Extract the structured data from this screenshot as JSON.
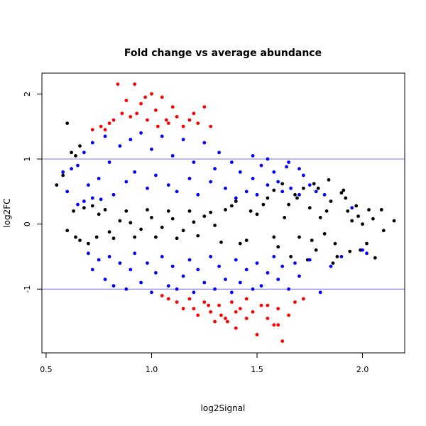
{
  "chart_data": {
    "type": "scatter",
    "title": "Fold change vs average abundance",
    "xlabel": "log2Signal",
    "ylabel": "log2FC",
    "xlim": [
      0.48,
      2.2
    ],
    "ylim": [
      -1.98,
      2.32
    ],
    "xticks": [
      "0.5",
      "1.0",
      "1.5",
      "2.0"
    ],
    "yticks": [
      "-1",
      "0",
      "1",
      "2"
    ],
    "reference_lines": [
      {
        "axis": "y",
        "value": 1,
        "color": "#7777ff"
      },
      {
        "axis": "y",
        "value": -1,
        "color": "#7777ff"
      }
    ],
    "colors": {
      "background_points": "#000000",
      "moderate_change": "#0000ff",
      "high_change": "#ff0000",
      "reference_line": "#7777ff"
    },
    "point_groups": [
      {
        "color": "#000000",
        "points": [
          [
            0.55,
            0.6
          ],
          [
            0.58,
            0.75
          ],
          [
            0.6,
            1.55
          ],
          [
            0.62,
            1.1
          ],
          [
            0.63,
            0.2
          ],
          [
            0.6,
            -0.1
          ],
          [
            0.64,
            -0.2
          ],
          [
            0.66,
            -0.25
          ],
          [
            0.7,
            -0.3
          ],
          [
            0.72,
            0.28
          ],
          [
            0.75,
            0.15
          ],
          [
            0.8,
            -0.12
          ],
          [
            0.85,
            0.05
          ],
          [
            0.9,
            0.02
          ],
          [
            0.95,
            -0.08
          ],
          [
            1.0,
            0.1
          ],
          [
            1.05,
            -0.05
          ],
          [
            1.1,
            0.08
          ],
          [
            1.15,
            -0.1
          ],
          [
            1.2,
            0.03
          ],
          [
            1.25,
            0.12
          ],
          [
            1.3,
            -0.02
          ],
          [
            1.35,
            0.22
          ],
          [
            1.4,
            0.35
          ],
          [
            1.45,
            -0.25
          ],
          [
            1.5,
            0.15
          ],
          [
            1.55,
            0.4
          ],
          [
            1.6,
            -0.35
          ],
          [
            1.65,
            0.3
          ],
          [
            1.7,
            -0.2
          ],
          [
            1.72,
            0.55
          ],
          [
            1.75,
            0.25
          ],
          [
            1.78,
            -0.4
          ],
          [
            1.8,
            0.1
          ],
          [
            1.82,
            -0.15
          ],
          [
            1.85,
            0.35
          ],
          [
            1.88,
            -0.5
          ],
          [
            1.9,
            0.48
          ],
          [
            1.93,
            0.2
          ],
          [
            1.95,
            0.05
          ],
          [
            1.98,
            0.12
          ],
          [
            2.0,
            0.0
          ],
          [
            2.02,
            -0.3
          ],
          [
            2.05,
            0.08
          ],
          [
            2.1,
            -0.1
          ],
          [
            2.15,
            0.05
          ],
          [
            1.94,
            -0.42
          ],
          [
            2.06,
            -0.52
          ],
          [
            2.03,
            0.22
          ],
          [
            1.97,
            0.28
          ],
          [
            1.92,
            0.4
          ],
          [
            1.87,
            -0.3
          ],
          [
            1.83,
            0.2
          ],
          [
            1.79,
            0.55
          ],
          [
            1.76,
            -0.25
          ],
          [
            1.69,
            0.4
          ],
          [
            1.66,
            -0.5
          ],
          [
            1.63,
            0.1
          ],
          [
            1.58,
            -0.2
          ],
          [
            1.53,
            0.3
          ],
          [
            1.47,
            0.2
          ],
          [
            1.42,
            -0.3
          ],
          [
            1.38,
            0.28
          ],
          [
            1.33,
            -0.28
          ],
          [
            1.28,
            0.18
          ],
          [
            1.22,
            -0.18
          ],
          [
            1.18,
            0.2
          ],
          [
            1.12,
            -0.22
          ],
          [
            1.08,
            0.2
          ],
          [
            1.02,
            -0.2
          ],
          [
            0.98,
            0.22
          ],
          [
            0.92,
            -0.2
          ],
          [
            0.88,
            0.2
          ],
          [
            0.82,
            -0.22
          ],
          [
            0.78,
            0.22
          ],
          [
            0.74,
            -0.2
          ],
          [
            0.68,
            0.25
          ],
          [
            0.66,
            1.2
          ],
          [
            0.64,
            1.05
          ],
          [
            1.58,
            0.52
          ],
          [
            1.62,
            0.62
          ],
          [
            1.68,
            0.45
          ],
          [
            1.74,
            -0.55
          ],
          [
            1.84,
            0.68
          ],
          [
            1.86,
            -0.6
          ],
          [
            1.91,
            0.52
          ],
          [
            1.99,
            -0.4
          ],
          [
            2.09,
            0.22
          ],
          [
            1.77,
            0.62
          ]
        ]
      },
      {
        "color": "#0000ff",
        "points": [
          [
            0.58,
            0.8
          ],
          [
            0.6,
            0.5
          ],
          [
            0.62,
            0.85
          ],
          [
            0.65,
            0.9
          ],
          [
            0.68,
            1.1
          ],
          [
            0.7,
            0.6
          ],
          [
            0.72,
            1.25
          ],
          [
            0.75,
            0.7
          ],
          [
            0.78,
            1.35
          ],
          [
            0.8,
            0.95
          ],
          [
            0.82,
            0.45
          ],
          [
            0.85,
            1.2
          ],
          [
            0.88,
            0.65
          ],
          [
            0.9,
            1.3
          ],
          [
            0.92,
            0.8
          ],
          [
            0.95,
            1.4
          ],
          [
            0.98,
            0.55
          ],
          [
            1.0,
            1.15
          ],
          [
            1.02,
            0.75
          ],
          [
            1.05,
            1.35
          ],
          [
            1.08,
            0.6
          ],
          [
            1.1,
            1.05
          ],
          [
            1.12,
            0.5
          ],
          [
            1.15,
            1.3
          ],
          [
            1.18,
            0.7
          ],
          [
            1.2,
            0.95
          ],
          [
            1.22,
            0.45
          ],
          [
            1.25,
            1.25
          ],
          [
            1.28,
            0.65
          ],
          [
            1.3,
            0.85
          ],
          [
            1.32,
            1.1
          ],
          [
            1.35,
            0.55
          ],
          [
            1.38,
            0.95
          ],
          [
            1.4,
            0.4
          ],
          [
            1.42,
            0.8
          ],
          [
            1.45,
            0.5
          ],
          [
            1.48,
            0.7
          ],
          [
            1.5,
            0.45
          ],
          [
            1.52,
            0.9
          ],
          [
            1.55,
            0.6
          ],
          [
            1.58,
            0.8
          ],
          [
            1.6,
            0.65
          ],
          [
            1.62,
            0.5
          ],
          [
            1.64,
            0.88
          ],
          [
            1.66,
            0.55
          ],
          [
            1.7,
            0.45
          ],
          [
            1.72,
            0.75
          ],
          [
            1.75,
            0.6
          ],
          [
            1.78,
            0.5
          ],
          [
            1.82,
            0.45
          ],
          [
            0.7,
            -0.45
          ],
          [
            0.72,
            -0.7
          ],
          [
            0.75,
            -0.55
          ],
          [
            0.78,
            -0.85
          ],
          [
            0.8,
            -0.5
          ],
          [
            0.82,
            -0.95
          ],
          [
            0.85,
            -0.6
          ],
          [
            0.88,
            -1.0
          ],
          [
            0.9,
            -0.7
          ],
          [
            0.92,
            -0.45
          ],
          [
            0.95,
            -0.9
          ],
          [
            0.98,
            -0.6
          ],
          [
            1.0,
            -1.05
          ],
          [
            1.02,
            -0.75
          ],
          [
            1.05,
            -0.5
          ],
          [
            1.08,
            -0.95
          ],
          [
            1.1,
            -0.65
          ],
          [
            1.12,
            -1.0
          ],
          [
            1.15,
            -0.8
          ],
          [
            1.18,
            -0.55
          ],
          [
            1.2,
            -1.05
          ],
          [
            1.22,
            -0.7
          ],
          [
            1.25,
            -0.9
          ],
          [
            1.28,
            -0.5
          ],
          [
            1.3,
            -1.0
          ],
          [
            1.32,
            -0.65
          ],
          [
            1.35,
            -0.85
          ],
          [
            1.38,
            -1.05
          ],
          [
            1.4,
            -0.55
          ],
          [
            1.42,
            -0.9
          ],
          [
            1.45,
            -0.7
          ],
          [
            1.48,
            -1.0
          ],
          [
            1.5,
            -0.6
          ],
          [
            1.52,
            -0.95
          ],
          [
            1.55,
            -0.75
          ],
          [
            1.58,
            -0.5
          ],
          [
            1.6,
            -0.85
          ],
          [
            1.62,
            -0.65
          ],
          [
            1.65,
            -1.0
          ],
          [
            1.68,
            -0.6
          ],
          [
            1.7,
            -0.8
          ],
          [
            1.75,
            -0.55
          ],
          [
            1.8,
            -1.05
          ],
          [
            1.85,
            -0.65
          ],
          [
            1.9,
            -0.5
          ],
          [
            2.0,
            -0.4
          ],
          [
            1.65,
            0.95
          ],
          [
            1.55,
            1.0
          ],
          [
            1.48,
            1.05
          ],
          [
            0.65,
            0.3
          ],
          [
            0.68,
            0.35
          ],
          [
            0.72,
            0.4
          ],
          [
            0.76,
            0.38
          ],
          [
            1.7,
            0.85
          ],
          [
            1.95,
            0.25
          ],
          [
            2.02,
            -0.45
          ]
        ]
      },
      {
        "color": "#ff0000",
        "points": [
          [
            0.72,
            1.45
          ],
          [
            0.76,
            1.5
          ],
          [
            0.8,
            1.55
          ],
          [
            0.84,
            2.15
          ],
          [
            0.86,
            1.7
          ],
          [
            0.9,
            1.65
          ],
          [
            0.92,
            2.15
          ],
          [
            0.95,
            1.85
          ],
          [
            0.98,
            1.6
          ],
          [
            1.0,
            2.0
          ],
          [
            1.02,
            1.75
          ],
          [
            1.05,
            1.95
          ],
          [
            1.08,
            1.55
          ],
          [
            1.12,
            1.65
          ],
          [
            1.15,
            1.5
          ],
          [
            1.2,
            1.7
          ],
          [
            1.22,
            1.55
          ],
          [
            1.25,
            1.8
          ],
          [
            1.28,
            1.5
          ],
          [
            0.88,
            1.9
          ],
          [
            0.93,
            1.7
          ],
          [
            0.97,
            1.95
          ],
          [
            1.03,
            1.5
          ],
          [
            1.07,
            1.6
          ],
          [
            1.1,
            1.8
          ],
          [
            1.18,
            1.6
          ],
          [
            0.82,
            1.6
          ],
          [
            0.78,
            1.45
          ],
          [
            1.05,
            -1.1
          ],
          [
            1.08,
            -1.15
          ],
          [
            1.12,
            -1.2
          ],
          [
            1.15,
            -1.3
          ],
          [
            1.18,
            -1.15
          ],
          [
            1.22,
            -1.4
          ],
          [
            1.25,
            -1.2
          ],
          [
            1.28,
            -1.35
          ],
          [
            1.3,
            -1.5
          ],
          [
            1.32,
            -1.25
          ],
          [
            1.35,
            -1.45
          ],
          [
            1.38,
            -1.2
          ],
          [
            1.4,
            -1.6
          ],
          [
            1.42,
            -1.3
          ],
          [
            1.45,
            -1.15
          ],
          [
            1.48,
            -1.35
          ],
          [
            1.5,
            -1.7
          ],
          [
            1.52,
            -1.25
          ],
          [
            1.55,
            -1.45
          ],
          [
            1.58,
            -1.55
          ],
          [
            1.6,
            -1.3
          ],
          [
            1.62,
            -1.8
          ],
          [
            1.65,
            -1.4
          ],
          [
            1.68,
            -1.2
          ],
          [
            1.72,
            -1.15
          ],
          [
            1.4,
            -1.35
          ],
          [
            1.36,
            -1.5
          ],
          [
            1.33,
            -1.4
          ],
          [
            1.27,
            -1.25
          ],
          [
            1.2,
            -1.3
          ],
          [
            1.45,
            -1.45
          ],
          [
            1.55,
            -1.25
          ],
          [
            1.6,
            -1.55
          ]
        ]
      }
    ]
  }
}
